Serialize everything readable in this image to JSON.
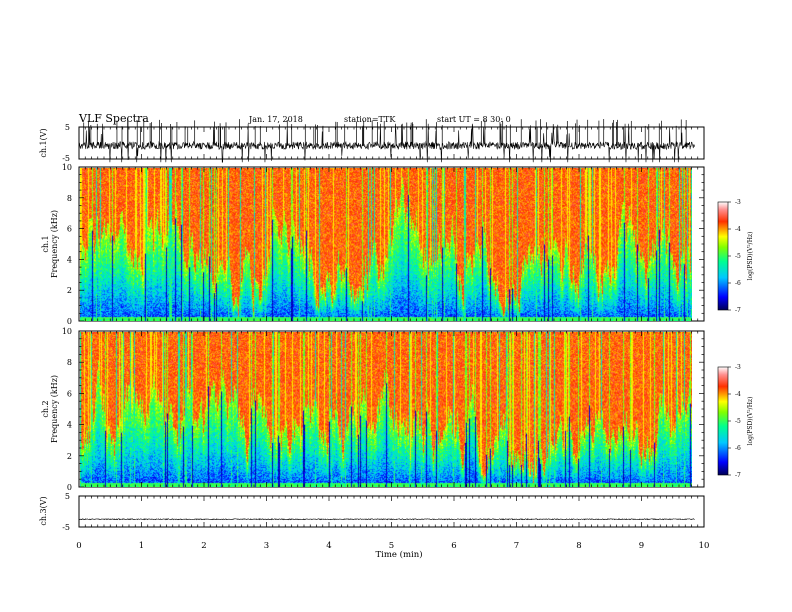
{
  "header": {
    "title": "VLF Spectra",
    "date": "Jan. 17, 2018",
    "station": "station=TTK",
    "start": "start UT =  8  30: 0"
  },
  "chart_data": {
    "type": "heatmap",
    "x": {
      "label": "Time  (min)",
      "range": [
        0,
        10
      ],
      "ticks": [
        "0",
        "1",
        "2",
        "3",
        "4",
        "5",
        "6",
        "7",
        "8",
        "9",
        "10"
      ]
    },
    "panels": [
      {
        "type": "line",
        "ylabel": "ch.1(V)",
        "ylim": [
          -5,
          5
        ],
        "ticks": [
          "5",
          "-5"
        ],
        "x_end": 9.85,
        "baseline": -0.8,
        "noise": 1.2,
        "spike_rate": "high"
      },
      {
        "type": "heatmap",
        "ylabel_channel": "ch.1",
        "ylabel": "Frequency  (kHz)",
        "ylim": [
          0,
          10
        ],
        "ticks": [
          "0",
          "2",
          "4",
          "6",
          "8",
          "10"
        ],
        "x_end": 9.85,
        "cutoff_khz": 4.5
      },
      {
        "type": "heatmap",
        "ylabel_channel": "ch.2",
        "ylabel": "Frequency  (kHz)",
        "ylim": [
          0,
          10
        ],
        "ticks": [
          "0",
          "2",
          "4",
          "6",
          "8",
          "10"
        ],
        "x_end": 9.85,
        "cutoff_khz": 4.0
      },
      {
        "type": "line",
        "ylabel": "ch.3(V)",
        "ylim": [
          -5,
          5
        ],
        "ticks": [
          "5",
          "-5"
        ],
        "x_end": 9.85,
        "baseline": -2.5,
        "noise": 0.15,
        "spike_rate": "none"
      }
    ],
    "colorbar": {
      "label": "log(PSD)(V²/Hz)",
      "range": [
        -7,
        -3
      ],
      "ticks": [
        "-3",
        "-4",
        "-5",
        "-6",
        "-7"
      ]
    }
  }
}
